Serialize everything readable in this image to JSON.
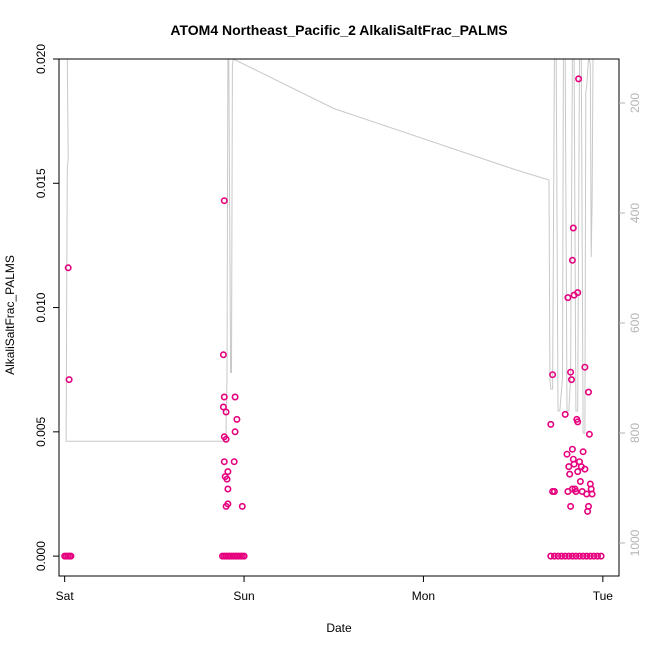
{
  "chart_data": {
    "type": "scatter",
    "title": "ATOM4 Northeast_Pacific_2 AlkaliSaltFrac_PALMS",
    "xlabel": "Date",
    "ylabel": "AlkaliSaltFrac_PALMS",
    "x_ticks": [
      "Sat",
      "Sun",
      "Mon",
      "Tue"
    ],
    "x_range": [
      -0.0315,
      3.09
    ],
    "y_range": [
      -0.0008,
      0.02
    ],
    "y_ticks": [
      "0.000",
      "0.005",
      "0.010",
      "0.015",
      "0.020"
    ],
    "y2_range": [
      1060,
      120
    ],
    "y2_ticks": [
      "200",
      "400",
      "600",
      "800",
      "1000"
    ],
    "grid": false,
    "colors": {
      "points": "#e6007e",
      "line": "#c8c8c8",
      "axis": "#000000",
      "y2_axis": "#b4b4b4"
    },
    "series": [
      {
        "kind": "points",
        "points": [
          [
            0.0,
            0.0
          ],
          [
            0.01,
            0.0
          ],
          [
            0.02,
            0.0
          ],
          [
            0.03,
            0.0
          ],
          [
            0.035,
            0.0
          ],
          [
            0.02,
            0.0116
          ],
          [
            0.025,
            0.0071
          ],
          [
            0.88,
            0.0
          ],
          [
            0.89,
            0.0
          ],
          [
            0.9,
            0.0
          ],
          [
            0.91,
            0.0
          ],
          [
            0.92,
            0.0
          ],
          [
            0.93,
            0.0
          ],
          [
            0.94,
            0.0
          ],
          [
            0.95,
            0.0
          ],
          [
            0.96,
            0.0
          ],
          [
            0.97,
            0.0
          ],
          [
            0.98,
            0.0
          ],
          [
            0.99,
            0.0
          ],
          [
            1.0,
            0.0
          ],
          [
            0.89,
            0.0143
          ],
          [
            0.885,
            0.0081
          ],
          [
            0.89,
            0.0064
          ],
          [
            0.885,
            0.006
          ],
          [
            0.9,
            0.0058
          ],
          [
            0.89,
            0.0048
          ],
          [
            0.9,
            0.0047
          ],
          [
            0.89,
            0.0038
          ],
          [
            0.91,
            0.0034
          ],
          [
            0.905,
            0.0031
          ],
          [
            0.895,
            0.0032
          ],
          [
            0.91,
            0.0027
          ],
          [
            0.9,
            0.002
          ],
          [
            0.91,
            0.0021
          ],
          [
            0.95,
            0.0064
          ],
          [
            0.96,
            0.0055
          ],
          [
            0.95,
            0.005
          ],
          [
            0.945,
            0.0038
          ],
          [
            0.99,
            0.002
          ],
          [
            2.71,
            0.0
          ],
          [
            2.73,
            0.0
          ],
          [
            2.75,
            0.0
          ],
          [
            2.77,
            0.0
          ],
          [
            2.79,
            0.0
          ],
          [
            2.81,
            0.0
          ],
          [
            2.83,
            0.0
          ],
          [
            2.85,
            0.0
          ],
          [
            2.87,
            0.0
          ],
          [
            2.89,
            0.0
          ],
          [
            2.91,
            0.0
          ],
          [
            2.93,
            0.0
          ],
          [
            2.95,
            0.0
          ],
          [
            2.97,
            0.0
          ],
          [
            2.99,
            0.0
          ],
          [
            2.72,
            0.0073
          ],
          [
            2.71,
            0.0053
          ],
          [
            2.72,
            0.0026
          ],
          [
            2.73,
            0.0026
          ],
          [
            2.79,
            0.0057
          ],
          [
            2.8,
            0.0041
          ],
          [
            2.81,
            0.0036
          ],
          [
            2.815,
            0.0033
          ],
          [
            2.82,
            0.0074
          ],
          [
            2.825,
            0.0071
          ],
          [
            2.83,
            0.0043
          ],
          [
            2.805,
            0.0104
          ],
          [
            2.83,
            0.0119
          ],
          [
            2.835,
            0.0132
          ],
          [
            2.84,
            0.0105
          ],
          [
            2.805,
            0.0026
          ],
          [
            2.82,
            0.002
          ],
          [
            2.83,
            0.0027
          ],
          [
            2.835,
            0.0039
          ],
          [
            2.84,
            0.0037
          ],
          [
            2.845,
            0.0027
          ],
          [
            2.85,
            0.0026
          ],
          [
            2.855,
            0.0055
          ],
          [
            2.86,
            0.0054
          ],
          [
            2.86,
            0.0106
          ],
          [
            2.865,
            0.0192
          ],
          [
            2.86,
            0.0034
          ],
          [
            2.87,
            0.0038
          ],
          [
            2.875,
            0.003
          ],
          [
            2.88,
            0.0036
          ],
          [
            2.89,
            0.0042
          ],
          [
            2.885,
            0.0026
          ],
          [
            2.9,
            0.0035
          ],
          [
            2.9,
            0.0076
          ],
          [
            2.91,
            0.0025
          ],
          [
            2.92,
            0.0066
          ],
          [
            2.925,
            0.0049
          ],
          [
            2.93,
            0.0029
          ],
          [
            2.935,
            0.0027
          ],
          [
            2.94,
            0.0025
          ],
          [
            2.915,
            0.0018
          ],
          [
            2.92,
            0.002
          ]
        ]
      },
      {
        "kind": "line",
        "axis": "y2",
        "points": [
          [
            0.0,
            120
          ],
          [
            0.015,
            120
          ],
          [
            0.02,
            300
          ],
          [
            0.015,
            320
          ],
          [
            0.012,
            500
          ],
          [
            0.01,
            700
          ],
          [
            0.008,
            815
          ],
          [
            0.5,
            815
          ],
          [
            0.9,
            815
          ],
          [
            0.9,
            780
          ],
          [
            0.905,
            700
          ],
          [
            0.91,
            120
          ],
          [
            0.915,
            120
          ],
          [
            0.925,
            690
          ],
          [
            0.93,
            690
          ],
          [
            0.935,
            130
          ],
          [
            0.94,
            120
          ],
          [
            1.5,
            210
          ],
          [
            2.5,
            320
          ],
          [
            2.7,
            340
          ],
          [
            2.705,
            700
          ],
          [
            2.71,
            720
          ],
          [
            2.72,
            720
          ],
          [
            2.73,
            120
          ],
          [
            2.74,
            120
          ],
          [
            2.75,
            760
          ],
          [
            2.76,
            760
          ],
          [
            2.775,
            700
          ],
          [
            2.78,
            120
          ],
          [
            2.79,
            120
          ],
          [
            2.8,
            760
          ],
          [
            2.81,
            760
          ],
          [
            2.82,
            700
          ],
          [
            2.83,
            120
          ],
          [
            2.84,
            120
          ],
          [
            2.85,
            760
          ],
          [
            2.86,
            760
          ],
          [
            2.87,
            120
          ],
          [
            2.88,
            120
          ],
          [
            2.89,
            800
          ],
          [
            2.9,
            800
          ],
          [
            2.905,
            180
          ],
          [
            2.91,
            170
          ],
          [
            2.92,
            120
          ],
          [
            2.925,
            120
          ],
          [
            2.93,
            130
          ],
          [
            2.935,
            480
          ],
          [
            2.94,
            380
          ],
          [
            2.945,
            120
          ],
          [
            2.95,
            120
          ]
        ]
      }
    ]
  }
}
